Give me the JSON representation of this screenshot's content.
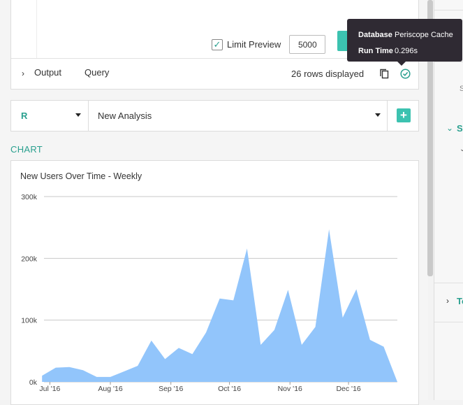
{
  "editor": {
    "limit_preview_label": "Limit Preview",
    "limit_checked": true,
    "limit_value": "5000"
  },
  "results_bar": {
    "output_tab": "Output",
    "query_tab": "Query",
    "rows_displayed": "26 rows displayed"
  },
  "tooltip": {
    "database_key": "Database",
    "database_value": "Periscope Cache",
    "runtime_key": "Run Time",
    "runtime_value": "0.296s"
  },
  "analysis": {
    "language": "R",
    "name": "New Analysis"
  },
  "chart_heading": "CHART",
  "sidebar": {
    "section1_letter": "S",
    "section1_sub": "S",
    "section2_letter": "To"
  },
  "colors": {
    "accent": "#2aa08f",
    "area_fill": "#92c5fb",
    "tooltip_bg": "#2f2a33"
  },
  "chart_data": {
    "type": "area",
    "title": "New Users Over Time - Weekly",
    "xlabel": "",
    "ylabel": "",
    "ylim": [
      0,
      300000
    ],
    "yticks": [
      0,
      100000,
      200000,
      300000
    ],
    "ytick_labels": [
      "0k",
      "100k",
      "200k",
      "300k"
    ],
    "xtick_labels": [
      "Jul '16",
      "Aug '16",
      "Sep '16",
      "Oct '16",
      "Nov '16",
      "Dec '16"
    ],
    "xticks": [
      "2016-07-01",
      "2016-08-01",
      "2016-09-01",
      "2016-10-01",
      "2016-11-01",
      "2016-12-01"
    ],
    "x": [
      "2016-06-27",
      "2016-07-04",
      "2016-07-11",
      "2016-07-18",
      "2016-07-25",
      "2016-08-01",
      "2016-08-08",
      "2016-08-15",
      "2016-08-22",
      "2016-08-29",
      "2016-09-05",
      "2016-09-12",
      "2016-09-19",
      "2016-09-26",
      "2016-10-03",
      "2016-10-10",
      "2016-10-17",
      "2016-10-24",
      "2016-10-31",
      "2016-11-07",
      "2016-11-14",
      "2016-11-21",
      "2016-11-28",
      "2016-12-05",
      "2016-12-12",
      "2016-12-19",
      "2016-12-26"
    ],
    "values": [
      10000,
      23000,
      24000,
      19000,
      8000,
      8000,
      17000,
      26000,
      67000,
      37000,
      55000,
      45000,
      80000,
      135000,
      132000,
      216000,
      60000,
      84000,
      149000,
      60000,
      89000,
      247000,
      104000,
      150000,
      68000,
      57000,
      0
    ],
    "grid": true,
    "legend": "none"
  }
}
